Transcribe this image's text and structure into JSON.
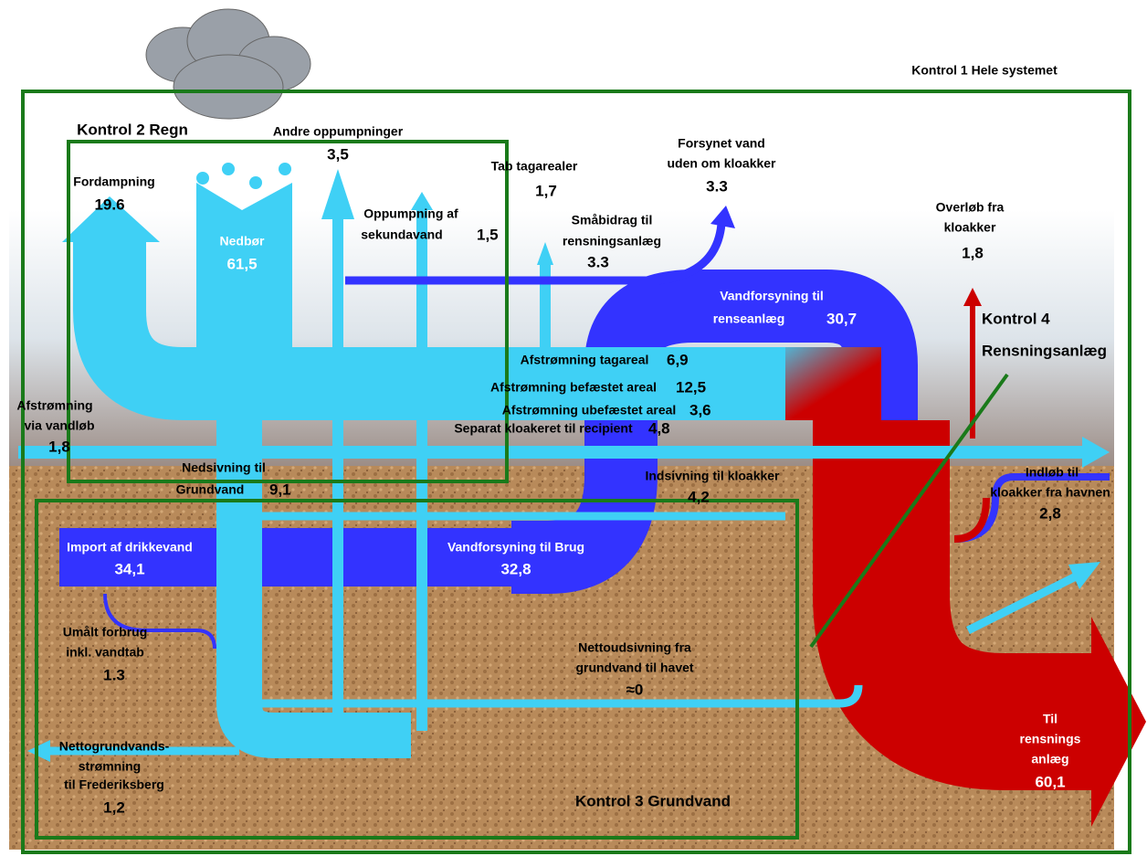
{
  "header": {
    "title": "Kontrol 1 Hele systemet"
  },
  "boxes": {
    "regn": "Kontrol 2 Regn",
    "grundvand": "Kontrol 3 Grundvand",
    "rensning": [
      "Kontrol 4",
      "Rensningsanlæg"
    ]
  },
  "flows": [
    {
      "lines": [
        "Fordampning"
      ],
      "value": "19.6"
    },
    {
      "lines": [
        "Andre oppumpninger"
      ],
      "value": "3,5"
    },
    {
      "lines": [
        "Nedbør"
      ],
      "value": "61,5"
    },
    {
      "lines": [
        "Oppumpning af",
        "sekundavand"
      ],
      "value": "1,5"
    },
    {
      "lines": [
        "Tab tagarealer"
      ],
      "value": "1,7"
    },
    {
      "lines": [
        "Forsynet vand",
        "uden om kloakker"
      ],
      "value": "3.3"
    },
    {
      "lines": [
        "Småbidrag til",
        "rensningsanlæg"
      ],
      "value": "3.3"
    },
    {
      "lines": [
        "Overløb fra",
        "kloakker"
      ],
      "value": "1,8"
    },
    {
      "lines": [
        "Vandforsyning til",
        "renseanlæg"
      ],
      "value": "30,7"
    },
    {
      "lines": [
        "Afstrømning tagareal"
      ],
      "value": "6,9"
    },
    {
      "lines": [
        "Afstrømning befæstet areal"
      ],
      "value": "12,5"
    },
    {
      "lines": [
        "Afstrømning ubefæstet areal"
      ],
      "value": "3,6"
    },
    {
      "lines": [
        "Afstrømning",
        "via vandløb"
      ],
      "value": "1,8"
    },
    {
      "lines": [
        "Separat kloakeret til recipient"
      ],
      "value": "4,8"
    },
    {
      "lines": [
        "Nedsivning til",
        "Grundvand"
      ],
      "value": "9,1"
    },
    {
      "lines": [
        "Indsivning til kloakker"
      ],
      "value": "4,2"
    },
    {
      "lines": [
        "Indløb til",
        "kloakker fra havnen"
      ],
      "value": "2,8"
    },
    {
      "lines": [
        "Import af drikkevand"
      ],
      "value": "34,1"
    },
    {
      "lines": [
        "Vandforsyning til Brug"
      ],
      "value": "32,8"
    },
    {
      "lines": [
        "Umålt  forbrug",
        "inkl. vandtab"
      ],
      "value": "1.3"
    },
    {
      "lines": [
        "Nettoudsivning fra",
        "grundvand til havet"
      ],
      "value": "≈0"
    },
    {
      "lines": [
        "Til",
        "rensnings",
        "anlæg"
      ],
      "value": "60,1"
    },
    {
      "lines": [
        "Nettogrundvands-",
        "strømning",
        "til Frederiksberg"
      ],
      "value": "1,2"
    }
  ]
}
